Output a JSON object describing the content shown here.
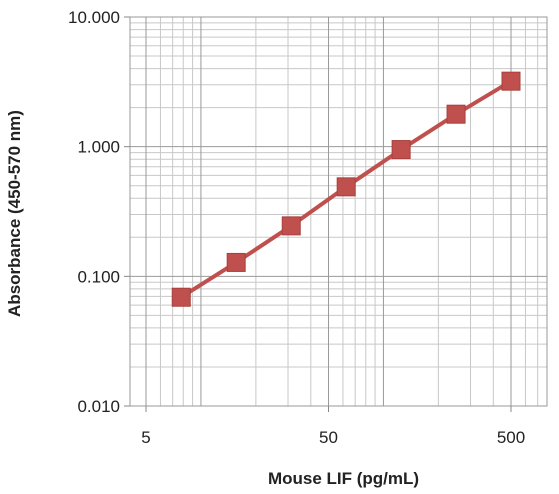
{
  "chart_data": {
    "type": "line",
    "title": "",
    "xlabel": "Mouse LIF (pg/mL)",
    "ylabel": "Absorbance (450-570 nm)",
    "x_scale": "log",
    "y_scale": "log",
    "xlim": [
      5,
      500
    ],
    "ylim": [
      0.01,
      10
    ],
    "x_ticks": [
      5,
      50,
      500
    ],
    "x_tick_labels": [
      "5",
      "50",
      "500"
    ],
    "y_ticks": [
      0.01,
      0.1,
      1,
      10
    ],
    "y_tick_labels": [
      "0.010",
      "0.100",
      "1.000",
      "10.000"
    ],
    "grid": true,
    "legend": "none",
    "series": [
      {
        "x": [
          7.8,
          15.6,
          31.25,
          62.5,
          125,
          250,
          500
        ],
        "values": [
          0.069,
          0.128,
          0.245,
          0.49,
          0.95,
          1.78,
          3.2
        ],
        "line_color": "#c0504d",
        "marker": "square",
        "marker_color": "#c0504d"
      }
    ]
  }
}
